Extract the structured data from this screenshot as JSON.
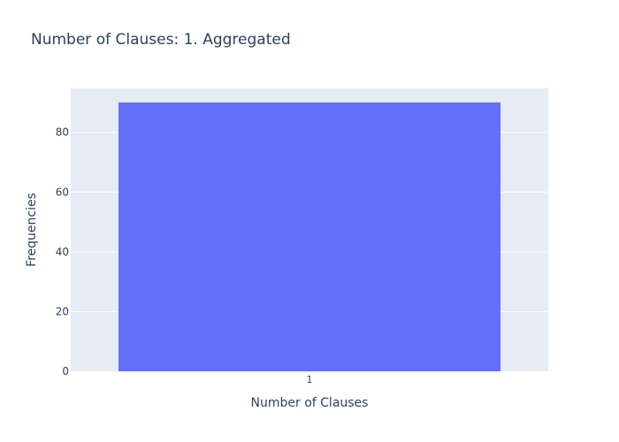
{
  "chart_data": {
    "type": "bar",
    "title": "Number of Clauses: 1. Aggregated",
    "xlabel": "Number of Clauses",
    "ylabel": "Frequencies",
    "categories": [
      "1"
    ],
    "values": [
      90
    ],
    "ylim": [
      0,
      94.7
    ],
    "yticks": [
      0,
      20,
      40,
      60,
      80
    ],
    "grid": true,
    "colors": {
      "bar": "#636efa",
      "plot_bg": "#e5ecf6",
      "grid": "#ffffff",
      "text": "#2a3f5f"
    }
  }
}
